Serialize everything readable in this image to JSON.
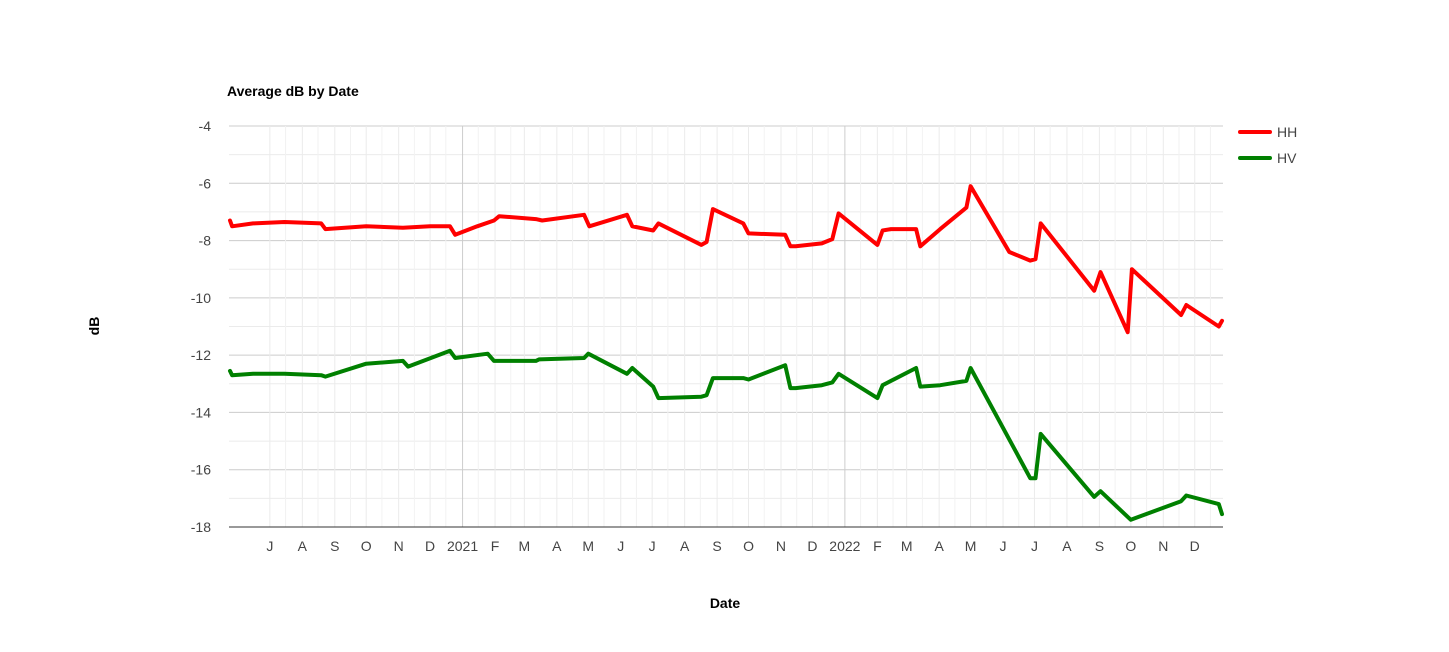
{
  "chart_data": {
    "type": "line",
    "title": "Average dB by Date",
    "xlabel": "Date",
    "ylabel": "dB",
    "ylim": [
      -18,
      -4
    ],
    "y_ticks": [
      "-4",
      "-6",
      "-8",
      "-10",
      "-12",
      "-14",
      "-16",
      "-18"
    ],
    "xlim": [
      "2020-05-23",
      "2022-12-28"
    ],
    "x_ticks": [
      {
        "date": "2020-07-01",
        "label": "J"
      },
      {
        "date": "2020-08-01",
        "label": "A"
      },
      {
        "date": "2020-09-01",
        "label": "S"
      },
      {
        "date": "2020-10-01",
        "label": "O"
      },
      {
        "date": "2020-11-01",
        "label": "N"
      },
      {
        "date": "2020-12-01",
        "label": "D"
      },
      {
        "date": "2021-01-01",
        "label": "2021"
      },
      {
        "date": "2021-02-01",
        "label": "F"
      },
      {
        "date": "2021-03-01",
        "label": "M"
      },
      {
        "date": "2021-04-01",
        "label": "A"
      },
      {
        "date": "2021-05-01",
        "label": "M"
      },
      {
        "date": "2021-06-01",
        "label": "J"
      },
      {
        "date": "2021-07-01",
        "label": "J"
      },
      {
        "date": "2021-08-01",
        "label": "A"
      },
      {
        "date": "2021-09-01",
        "label": "S"
      },
      {
        "date": "2021-10-01",
        "label": "O"
      },
      {
        "date": "2021-11-01",
        "label": "N"
      },
      {
        "date": "2021-12-01",
        "label": "D"
      },
      {
        "date": "2022-01-01",
        "label": "2022"
      },
      {
        "date": "2022-02-01",
        "label": "F"
      },
      {
        "date": "2022-03-01",
        "label": "M"
      },
      {
        "date": "2022-04-01",
        "label": "A"
      },
      {
        "date": "2022-05-01",
        "label": "M"
      },
      {
        "date": "2022-06-01",
        "label": "J"
      },
      {
        "date": "2022-07-01",
        "label": "J"
      },
      {
        "date": "2022-08-01",
        "label": "A"
      },
      {
        "date": "2022-09-01",
        "label": "S"
      },
      {
        "date": "2022-10-01",
        "label": "O"
      },
      {
        "date": "2022-11-01",
        "label": "N"
      },
      {
        "date": "2022-12-01",
        "label": "D"
      }
    ],
    "grid": true,
    "legend_position": "right",
    "series": [
      {
        "name": "HH",
        "color": "#ff0000",
        "x": [
          "2020-05-24",
          "2020-05-26",
          "2020-06-15",
          "2020-07-15",
          "2020-08-19",
          "2020-08-23",
          "2020-10-01",
          "2020-11-05",
          "2020-12-01",
          "2020-12-20",
          "2020-12-25",
          "2021-01-15",
          "2021-01-31",
          "2021-02-05",
          "2021-03-12",
          "2021-03-18",
          "2021-04-27",
          "2021-05-02",
          "2021-06-07",
          "2021-06-12",
          "2021-07-02",
          "2021-07-07",
          "2021-08-17",
          "2021-08-22",
          "2021-08-28",
          "2021-09-26",
          "2021-10-01",
          "2021-11-05",
          "2021-11-10",
          "2021-11-15",
          "2021-12-10",
          "2021-12-20",
          "2021-12-26",
          "2022-02-01",
          "2022-02-06",
          "2022-02-14",
          "2022-03-10",
          "2022-03-14",
          "2022-04-02",
          "2022-04-27",
          "2022-05-01",
          "2022-06-07",
          "2022-06-27",
          "2022-07-02",
          "2022-07-07",
          "2022-08-27",
          "2022-09-02",
          "2022-09-28",
          "2022-10-02",
          "2022-11-18",
          "2022-11-23",
          "2022-12-24",
          "2022-12-27"
        ],
        "values": [
          -7.3,
          -7.5,
          -7.4,
          -7.35,
          -7.4,
          -7.6,
          -7.5,
          -7.55,
          -7.5,
          -7.5,
          -7.8,
          -7.5,
          -7.3,
          -7.15,
          -7.25,
          -7.3,
          -7.1,
          -7.5,
          -7.1,
          -7.5,
          -7.65,
          -7.4,
          -8.15,
          -8.05,
          -6.9,
          -7.4,
          -7.75,
          -7.8,
          -8.2,
          -8.2,
          -8.1,
          -7.95,
          -7.05,
          -8.15,
          -7.65,
          -7.6,
          -7.6,
          -8.2,
          -7.6,
          -6.85,
          -6.1,
          -8.4,
          -8.7,
          -8.65,
          -7.4,
          -9.75,
          -9.1,
          -11.2,
          -9.0,
          -10.6,
          -10.25,
          -11.0,
          -10.8
        ]
      },
      {
        "name": "HV",
        "color": "#008000",
        "x": [
          "2020-05-24",
          "2020-05-26",
          "2020-06-15",
          "2020-07-15",
          "2020-08-19",
          "2020-08-23",
          "2020-10-01",
          "2020-11-05",
          "2020-11-10",
          "2020-12-20",
          "2020-12-25",
          "2021-01-25",
          "2021-01-31",
          "2021-03-12",
          "2021-03-15",
          "2021-04-27",
          "2021-05-01",
          "2021-06-07",
          "2021-06-12",
          "2021-07-02",
          "2021-07-07",
          "2021-08-17",
          "2021-08-22",
          "2021-08-28",
          "2021-09-26",
          "2021-10-01",
          "2021-11-05",
          "2021-11-10",
          "2021-11-15",
          "2021-12-10",
          "2021-12-20",
          "2021-12-26",
          "2022-02-01",
          "2022-02-06",
          "2022-03-10",
          "2022-03-14",
          "2022-04-02",
          "2022-04-27",
          "2022-05-01",
          "2022-06-27",
          "2022-07-02",
          "2022-07-07",
          "2022-08-27",
          "2022-09-02",
          "2022-10-01",
          "2022-11-18",
          "2022-11-23",
          "2022-12-24",
          "2022-12-27"
        ],
        "values": [
          -12.55,
          -12.7,
          -12.65,
          -12.65,
          -12.7,
          -12.75,
          -12.3,
          -12.2,
          -12.4,
          -11.85,
          -12.1,
          -11.95,
          -12.2,
          -12.2,
          -12.15,
          -12.1,
          -11.95,
          -12.65,
          -12.45,
          -13.1,
          -13.5,
          -13.45,
          -13.4,
          -12.8,
          -12.8,
          -12.85,
          -12.35,
          -13.15,
          -13.15,
          -13.05,
          -12.95,
          -12.65,
          -13.5,
          -13.05,
          -12.45,
          -13.1,
          -13.05,
          -12.9,
          -12.45,
          -16.3,
          -16.3,
          -14.75,
          -16.95,
          -16.75,
          -17.75,
          -17.1,
          -16.9,
          -17.2,
          -17.55
        ]
      }
    ]
  }
}
